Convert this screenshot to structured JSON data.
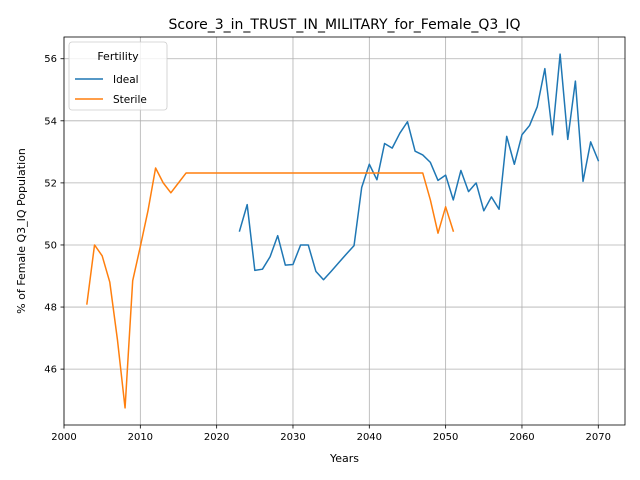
{
  "chart_data": {
    "type": "line",
    "title": "Score_3_in_TRUST_IN_MILITARY_for_Female_Q3_IQ",
    "xlabel": "Years",
    "ylabel": "% of Female Q3_IQ Population",
    "xlim": [
      2000,
      2073.5
    ],
    "ylim": [
      44.2,
      56.7
    ],
    "xticks": [
      2000,
      2010,
      2020,
      2030,
      2040,
      2050,
      2060,
      2070
    ],
    "yticks": [
      46,
      48,
      50,
      52,
      54,
      56
    ],
    "grid": true,
    "legend": {
      "title": "Fertility",
      "placement": "top-left"
    },
    "series": [
      {
        "name": "Ideal",
        "color": "#1f77b4",
        "x": [
          2023,
          2024,
          2025,
          2026,
          2027,
          2028,
          2029,
          2030,
          2031,
          2032,
          2033,
          2034,
          2035,
          2036,
          2037,
          2038,
          2039,
          2040,
          2041,
          2042,
          2043,
          2044,
          2045,
          2046,
          2047,
          2048,
          2049,
          2050,
          2051,
          2052,
          2053,
          2054,
          2055,
          2056,
          2057,
          2058,
          2059,
          2060,
          2061,
          2062,
          2063,
          2064,
          2065,
          2066,
          2067,
          2068,
          2069,
          2070
        ],
        "values": [
          50.45,
          51.3,
          49.18,
          49.22,
          49.62,
          50.3,
          49.35,
          49.37,
          50.0,
          50.0,
          49.15,
          48.88,
          49.15,
          49.43,
          49.71,
          49.98,
          51.85,
          52.6,
          52.1,
          53.27,
          53.12,
          53.6,
          53.97,
          53.02,
          52.9,
          52.66,
          52.08,
          52.25,
          51.45,
          52.4,
          51.72,
          52.0,
          51.1,
          51.55,
          51.15,
          53.5,
          52.6,
          53.55,
          53.85,
          54.45,
          55.68,
          53.55,
          56.15,
          53.4,
          55.28,
          52.05,
          53.32,
          52.72
        ]
      },
      {
        "name": "Sterile",
        "color": "#ff7f0e",
        "x": [
          2003,
          2004,
          2005,
          2006,
          2007,
          2008,
          2009,
          2010,
          2011,
          2012,
          2013,
          2014,
          2015,
          2016,
          2017,
          2018,
          2019,
          2020,
          2021,
          2022,
          2023,
          2024,
          2025,
          2026,
          2027,
          2028,
          2029,
          2030,
          2031,
          2032,
          2033,
          2034,
          2035,
          2036,
          2037,
          2038,
          2039,
          2040,
          2041,
          2042,
          2043,
          2044,
          2045,
          2046,
          2047,
          2048,
          2049,
          2050,
          2051
        ],
        "values": [
          48.1,
          50.0,
          49.65,
          48.8,
          46.95,
          44.75,
          48.85,
          49.95,
          51.1,
          52.48,
          52.0,
          51.68,
          52.0,
          52.32,
          52.32,
          52.32,
          52.32,
          52.32,
          52.32,
          52.32,
          52.32,
          52.32,
          52.32,
          52.32,
          52.32,
          52.32,
          52.32,
          52.32,
          52.32,
          52.32,
          52.32,
          52.32,
          52.32,
          52.32,
          52.32,
          52.32,
          52.32,
          52.32,
          52.32,
          52.32,
          52.32,
          52.32,
          52.32,
          52.32,
          52.32,
          51.45,
          50.38,
          51.23,
          50.45
        ]
      }
    ]
  }
}
